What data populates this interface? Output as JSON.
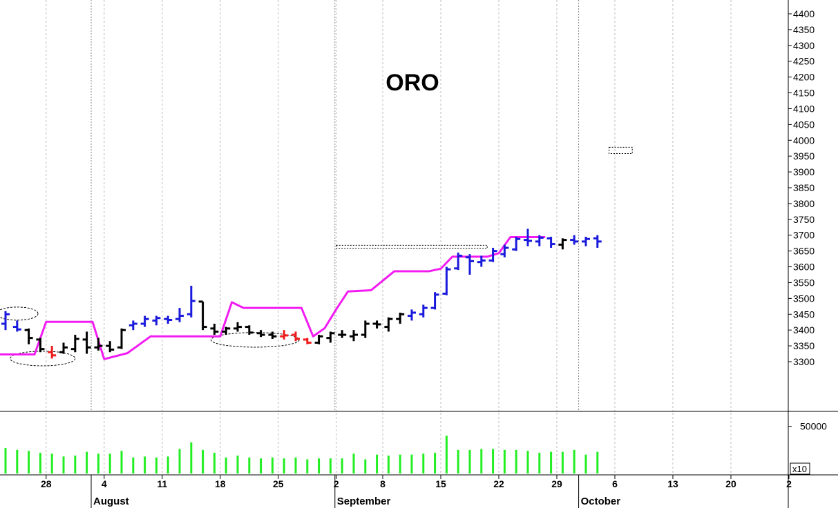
{
  "chart_data": {
    "type": "ohlc",
    "title": "ORO",
    "colors": {
      "up": "#1a1adc",
      "neutral": "#000000",
      "down": "#ee1c1c",
      "stop_line": "#f21cf2",
      "volume": "#22ee22",
      "grid": "#bbbbbb",
      "ellipse": "#000000"
    },
    "price_axis": {
      "ylim": [
        3255,
        4425
      ],
      "ticks": [
        3300,
        3350,
        3400,
        3450,
        3500,
        3550,
        3600,
        3650,
        3700,
        3750,
        3800,
        3850,
        3900,
        3950,
        4000,
        4050,
        4100,
        4150,
        4200,
        4250,
        4300,
        4350,
        4400
      ],
      "tick_labels": [
        "3300",
        "3350",
        "3400",
        "3450",
        "3500",
        "3550",
        "3600",
        "3650",
        "3700",
        "3750",
        "3800",
        "3850",
        "3900",
        "3950",
        "4000",
        "4050",
        "4100",
        "4150",
        "4200",
        "4250",
        "4300",
        "4350",
        "4400"
      ]
    },
    "volume_axis": {
      "tick_values": [
        50000
      ],
      "tick_labels": [
        "50000"
      ],
      "multiplier_label": "x10",
      "max": 60000
    },
    "x_axis": {
      "day_ticks": [
        {
          "bar": 3.5,
          "label": "28"
        },
        {
          "bar": 8.5,
          "label": "4"
        },
        {
          "bar": 13.5,
          "label": "11"
        },
        {
          "bar": 18.5,
          "label": "18"
        },
        {
          "bar": 23.5,
          "label": "25"
        },
        {
          "bar": 28.5,
          "label": "2"
        },
        {
          "bar": 32.5,
          "label": "8"
        },
        {
          "bar": 37.5,
          "label": "15"
        },
        {
          "bar": 42.5,
          "label": "22"
        },
        {
          "bar": 47.5,
          "label": "29"
        },
        {
          "bar": 52.5,
          "label": "6"
        },
        {
          "bar": 57.5,
          "label": "13"
        },
        {
          "bar": 62.5,
          "label": "20"
        },
        {
          "bar": 67.5,
          "label": "2"
        }
      ],
      "months": [
        {
          "bar": 7.5,
          "label": "August"
        },
        {
          "bar": 28.5,
          "label": "September"
        },
        {
          "bar": 49.5,
          "label": "October"
        }
      ]
    },
    "bars": [
      {
        "o": 3420,
        "h": 3460,
        "l": 3400,
        "c": 3450,
        "v": 27000,
        "color": "up"
      },
      {
        "o": 3410,
        "h": 3430,
        "l": 3395,
        "c": 3402,
        "v": 25000,
        "color": "up"
      },
      {
        "o": 3400,
        "h": 3405,
        "l": 3355,
        "c": 3375,
        "v": 24000,
        "color": "neutral"
      },
      {
        "o": 3370,
        "h": 3375,
        "l": 3330,
        "c": 3340,
        "v": 22000,
        "color": "neutral"
      },
      {
        "o": 3330,
        "h": 3350,
        "l": 3310,
        "c": 3320,
        "v": 21000,
        "color": "down"
      },
      {
        "o": 3330,
        "h": 3360,
        "l": 3325,
        "c": 3345,
        "v": 18000,
        "color": "neutral"
      },
      {
        "o": 3340,
        "h": 3385,
        "l": 3330,
        "c": 3372,
        "v": 19000,
        "color": "neutral"
      },
      {
        "o": 3370,
        "h": 3395,
        "l": 3325,
        "c": 3345,
        "v": 23000,
        "color": "neutral"
      },
      {
        "o": 3345,
        "h": 3375,
        "l": 3335,
        "c": 3350,
        "v": 21000,
        "color": "neutral"
      },
      {
        "o": 3350,
        "h": 3365,
        "l": 3330,
        "c": 3338,
        "v": 21000,
        "color": "neutral"
      },
      {
        "o": 3345,
        "h": 3405,
        "l": 3340,
        "c": 3400,
        "v": 24000,
        "color": "neutral"
      },
      {
        "o": 3415,
        "h": 3430,
        "l": 3400,
        "c": 3420,
        "v": 17000,
        "color": "up"
      },
      {
        "o": 3420,
        "h": 3445,
        "l": 3410,
        "c": 3435,
        "v": 18000,
        "color": "up"
      },
      {
        "o": 3430,
        "h": 3445,
        "l": 3415,
        "c": 3438,
        "v": 17000,
        "color": "up"
      },
      {
        "o": 3435,
        "h": 3445,
        "l": 3420,
        "c": 3432,
        "v": 18000,
        "color": "up"
      },
      {
        "o": 3435,
        "h": 3470,
        "l": 3425,
        "c": 3445,
        "v": 26000,
        "color": "up"
      },
      {
        "o": 3450,
        "h": 3540,
        "l": 3440,
        "c": 3492,
        "v": 33000,
        "color": "up"
      },
      {
        "o": 3490,
        "h": 3465,
        "l": 3400,
        "c": 3410,
        "v": 25000,
        "color": "neutral"
      },
      {
        "o": 3405,
        "h": 3420,
        "l": 3385,
        "c": 3395,
        "v": 22000,
        "color": "neutral"
      },
      {
        "o": 3395,
        "h": 3410,
        "l": 3385,
        "c": 3405,
        "v": 17000,
        "color": "neutral"
      },
      {
        "o": 3405,
        "h": 3425,
        "l": 3395,
        "c": 3410,
        "v": 19000,
        "color": "neutral"
      },
      {
        "o": 3410,
        "h": 3415,
        "l": 3385,
        "c": 3392,
        "v": 17000,
        "color": "neutral"
      },
      {
        "o": 3390,
        "h": 3400,
        "l": 3378,
        "c": 3385,
        "v": 16000,
        "color": "neutral"
      },
      {
        "o": 3385,
        "h": 3395,
        "l": 3372,
        "c": 3380,
        "v": 17000,
        "color": "neutral"
      },
      {
        "o": 3380,
        "h": 3400,
        "l": 3370,
        "c": 3383,
        "v": 16000,
        "color": "down"
      },
      {
        "o": 3385,
        "h": 3395,
        "l": 3365,
        "c": 3372,
        "v": 17000,
        "color": "down"
      },
      {
        "o": 3370,
        "h": 3375,
        "l": 3355,
        "c": 3360,
        "v": 15000,
        "color": "down"
      },
      {
        "o": 3360,
        "h": 3385,
        "l": 3355,
        "c": 3380,
        "v": 16000,
        "color": "neutral"
      },
      {
        "o": 3375,
        "h": 3395,
        "l": 3360,
        "c": 3390,
        "v": 16000,
        "color": "neutral"
      },
      {
        "o": 3385,
        "h": 3400,
        "l": 3375,
        "c": 3385,
        "v": 16000,
        "color": "neutral"
      },
      {
        "o": 3380,
        "h": 3400,
        "l": 3365,
        "c": 3385,
        "v": 21000,
        "color": "neutral"
      },
      {
        "o": 3385,
        "h": 3430,
        "l": 3375,
        "c": 3420,
        "v": 15000,
        "color": "neutral"
      },
      {
        "o": 3420,
        "h": 3430,
        "l": 3405,
        "c": 3418,
        "v": 20000,
        "color": "neutral"
      },
      {
        "o": 3410,
        "h": 3440,
        "l": 3395,
        "c": 3435,
        "v": 19000,
        "color": "neutral"
      },
      {
        "o": 3435,
        "h": 3455,
        "l": 3420,
        "c": 3450,
        "v": 20000,
        "color": "neutral"
      },
      {
        "o": 3445,
        "h": 3465,
        "l": 3430,
        "c": 3455,
        "v": 20000,
        "color": "up"
      },
      {
        "o": 3450,
        "h": 3480,
        "l": 3440,
        "c": 3470,
        "v": 21000,
        "color": "up"
      },
      {
        "o": 3470,
        "h": 3520,
        "l": 3465,
        "c": 3512,
        "v": 22000,
        "color": "up"
      },
      {
        "o": 3515,
        "h": 3600,
        "l": 3510,
        "c": 3592,
        "v": 40000,
        "color": "up"
      },
      {
        "o": 3595,
        "h": 3645,
        "l": 3590,
        "c": 3635,
        "v": 25000,
        "color": "up"
      },
      {
        "o": 3630,
        "h": 3640,
        "l": 3575,
        "c": 3618,
        "v": 25000,
        "color": "up"
      },
      {
        "o": 3615,
        "h": 3635,
        "l": 3600,
        "c": 3620,
        "v": 26000,
        "color": "up"
      },
      {
        "o": 3620,
        "h": 3660,
        "l": 3615,
        "c": 3650,
        "v": 26000,
        "color": "up"
      },
      {
        "o": 3640,
        "h": 3670,
        "l": 3630,
        "c": 3660,
        "v": 25000,
        "color": "up"
      },
      {
        "o": 3655,
        "h": 3695,
        "l": 3650,
        "c": 3688,
        "v": 25000,
        "color": "up"
      },
      {
        "o": 3685,
        "h": 3720,
        "l": 3665,
        "c": 3682,
        "v": 24000,
        "color": "up"
      },
      {
        "o": 3680,
        "h": 3700,
        "l": 3665,
        "c": 3692,
        "v": 22000,
        "color": "up"
      },
      {
        "o": 3690,
        "h": 3695,
        "l": 3660,
        "c": 3672,
        "v": 23000,
        "color": "up"
      },
      {
        "o": 3670,
        "h": 3690,
        "l": 3655,
        "c": 3685,
        "v": 23000,
        "color": "neutral"
      },
      {
        "o": 3685,
        "h": 3700,
        "l": 3670,
        "c": 3680,
        "v": 25000,
        "color": "up"
      },
      {
        "o": 3680,
        "h": 3695,
        "l": 3665,
        "c": 3688,
        "v": 20000,
        "color": "up"
      },
      {
        "o": 3690,
        "h": 3700,
        "l": 3660,
        "c": 3680,
        "v": 23000,
        "color": "up"
      }
    ],
    "stop_line_points": [
      [
        -0.5,
        3323
      ],
      [
        1.5,
        3323
      ],
      [
        2.5,
        3323
      ],
      [
        3.5,
        3426
      ],
      [
        7.5,
        3426
      ],
      [
        8.5,
        3308
      ],
      [
        10.5,
        3327
      ],
      [
        12.5,
        3380
      ],
      [
        17.5,
        3380
      ],
      [
        18.5,
        3380
      ],
      [
        19.5,
        3488
      ],
      [
        20.5,
        3470
      ],
      [
        25.5,
        3470
      ],
      [
        26.5,
        3380
      ],
      [
        27.5,
        3406
      ],
      [
        28.5,
        3466
      ],
      [
        29.5,
        3522
      ],
      [
        31.5,
        3526
      ],
      [
        33.5,
        3586
      ],
      [
        36.5,
        3586
      ],
      [
        37.5,
        3594
      ],
      [
        38.5,
        3632
      ],
      [
        41.5,
        3632
      ],
      [
        42.5,
        3643
      ],
      [
        43.5,
        3694
      ],
      [
        46.5,
        3694
      ]
    ],
    "ellipses": [
      {
        "cx_bar": 1.0,
        "cy": 3452,
        "rx_bars": 1.8,
        "ry_price": 10
      },
      {
        "cx_bar": 3.2,
        "cy": 3310,
        "rx_bars": 2.8,
        "ry_price": 12
      },
      {
        "cx_bar": 21.5,
        "cy": 3369,
        "rx_bars": 3.8,
        "ry_price": 12
      }
    ],
    "rects": [
      {
        "x0_bar": 28.5,
        "x1_bar": 41.5,
        "y0": 3658,
        "y1": 3668
      },
      {
        "x0_bar": 52.0,
        "x1_bar": 54.0,
        "y0": 3958,
        "y1": 3978
      }
    ]
  }
}
